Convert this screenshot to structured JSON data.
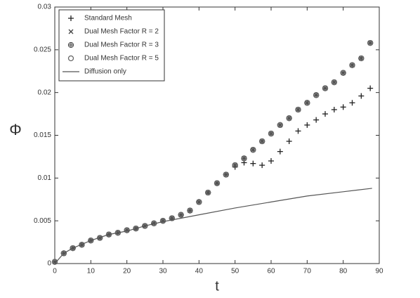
{
  "chart_data": {
    "type": "scatter",
    "xlabel": "t",
    "ylabel": "Φ",
    "xlim": [
      0,
      90
    ],
    "xticks": [
      0,
      10,
      20,
      30,
      40,
      50,
      60,
      70,
      80,
      90
    ],
    "ylim": [
      0,
      0.03
    ],
    "yticks": [
      0,
      0.005,
      0.01,
      0.015,
      0.02,
      0.025,
      0.03
    ],
    "legend": "upper left",
    "series": [
      {
        "name": "Standard Mesh",
        "marker": "plus",
        "color": "#222222",
        "x": [
          0,
          2.5,
          5,
          7.5,
          10,
          12.5,
          15,
          17.5,
          20,
          22.5,
          25,
          27.5,
          30,
          32.5,
          35,
          37.5,
          40,
          42.5,
          45,
          47.5,
          50,
          52.5,
          55,
          57.5,
          60,
          62.5,
          65,
          67.5,
          70,
          72.5,
          75,
          77.5,
          80,
          82.5,
          85,
          87.5
        ],
        "values": [
          0.0002,
          0.0012,
          0.0018,
          0.0022,
          0.0027,
          0.003,
          0.0034,
          0.0036,
          0.0039,
          0.0041,
          0.0044,
          0.0047,
          0.005,
          0.0053,
          0.0057,
          0.0062,
          0.0072,
          0.0083,
          0.0094,
          0.0104,
          0.0113,
          0.0118,
          0.0117,
          0.0115,
          0.012,
          0.0131,
          0.0143,
          0.0155,
          0.0162,
          0.0168,
          0.0175,
          0.018,
          0.0183,
          0.0188,
          0.0196,
          0.0205
        ]
      },
      {
        "name": "Dual Mesh Factor R = 2",
        "marker": "cross",
        "color": "#444444",
        "x": [
          0,
          2.5,
          5,
          7.5,
          10,
          12.5,
          15,
          17.5,
          20,
          22.5,
          25,
          27.5,
          30,
          32.5,
          35,
          37.5,
          40,
          42.5,
          45,
          47.5,
          50,
          52.5,
          55,
          57.5,
          60,
          62.5,
          65,
          67.5,
          70,
          72.5,
          75,
          77.5,
          80,
          82.5,
          85,
          87.5
        ],
        "values": [
          0.0002,
          0.0012,
          0.0018,
          0.0022,
          0.0027,
          0.003,
          0.0034,
          0.0036,
          0.0039,
          0.0041,
          0.0044,
          0.0047,
          0.005,
          0.0053,
          0.0057,
          0.0062,
          0.0072,
          0.0083,
          0.0094,
          0.0104,
          0.0115,
          0.0123,
          0.0133,
          0.0143,
          0.0152,
          0.0162,
          0.017,
          0.018,
          0.0188,
          0.0197,
          0.0205,
          0.0212,
          0.0223,
          0.0232,
          0.024,
          0.0258
        ]
      },
      {
        "name": "Dual Mesh Factor R = 3",
        "marker": "circleplus",
        "color": "#555555",
        "x": [
          0,
          2.5,
          5,
          7.5,
          10,
          12.5,
          15,
          17.5,
          20,
          22.5,
          25,
          27.5,
          30,
          32.5,
          35,
          37.5,
          40,
          42.5,
          45,
          47.5,
          50,
          52.5,
          55,
          57.5,
          60,
          62.5,
          65,
          67.5,
          70,
          72.5,
          75,
          77.5,
          80,
          82.5,
          85,
          87.5
        ],
        "values": [
          0.0002,
          0.0012,
          0.0018,
          0.0022,
          0.0027,
          0.003,
          0.0034,
          0.0036,
          0.0039,
          0.0041,
          0.0044,
          0.0047,
          0.005,
          0.0053,
          0.0057,
          0.0062,
          0.0072,
          0.0083,
          0.0094,
          0.0104,
          0.0115,
          0.0123,
          0.0133,
          0.0143,
          0.0152,
          0.0162,
          0.017,
          0.018,
          0.0188,
          0.0197,
          0.0205,
          0.0212,
          0.0223,
          0.0232,
          0.024,
          0.0258
        ]
      },
      {
        "name": "Dual Mesh Factor R = 5",
        "marker": "circle",
        "color": "#666666",
        "x": [
          0,
          2.5,
          5,
          7.5,
          10,
          12.5,
          15,
          17.5,
          20,
          22.5,
          25,
          27.5,
          30,
          32.5,
          35,
          37.5,
          40,
          42.5,
          45,
          47.5,
          50,
          52.5,
          55,
          57.5,
          60,
          62.5,
          65,
          67.5,
          70,
          72.5,
          75,
          77.5,
          80,
          82.5,
          85,
          87.5
        ],
        "values": [
          0.0002,
          0.0012,
          0.0018,
          0.0022,
          0.0027,
          0.003,
          0.0034,
          0.0036,
          0.0039,
          0.0041,
          0.0044,
          0.0047,
          0.005,
          0.0053,
          0.0057,
          0.0062,
          0.0072,
          0.0083,
          0.0094,
          0.0104,
          0.0115,
          0.0123,
          0.0133,
          0.0143,
          0.0152,
          0.0162,
          0.017,
          0.018,
          0.0188,
          0.0197,
          0.0205,
          0.0212,
          0.0223,
          0.0232,
          0.024,
          0.0258
        ]
      },
      {
        "name": "Diffusion only",
        "marker": "line",
        "color": "#555555",
        "x": [
          0,
          2.5,
          5,
          10,
          15,
          20,
          25,
          30,
          35,
          40,
          50,
          60,
          70,
          80,
          88
        ],
        "values": [
          0,
          0.0012,
          0.0018,
          0.0027,
          0.0034,
          0.0038,
          0.0044,
          0.0049,
          0.0053,
          0.0057,
          0.0065,
          0.0072,
          0.0079,
          0.0084,
          0.0088
        ]
      }
    ]
  }
}
